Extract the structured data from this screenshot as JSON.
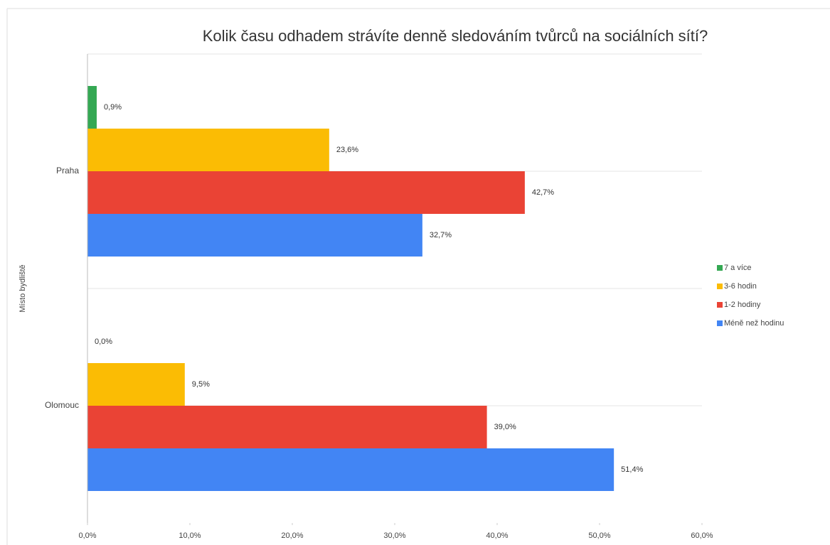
{
  "chart_data": {
    "type": "hbar",
    "title": "Kolik času odhadem strávíte denně sledováním tvůrců na sociálních sítí?",
    "y_label": "Místo bydliště",
    "categories": [
      "Praha",
      "Olomouc"
    ],
    "series": [
      {
        "name": "7 a více",
        "color": "#34a853",
        "values": [
          0.9,
          0.0
        ],
        "value_labels": [
          "0,9%",
          "0,0%"
        ]
      },
      {
        "name": "3-6 hodin",
        "color": "#fbbc04",
        "values": [
          23.6,
          9.5
        ],
        "value_labels": [
          "23,6%",
          "9,5%"
        ]
      },
      {
        "name": "1-2 hodiny",
        "color": "#ea4335",
        "values": [
          42.7,
          39.0
        ],
        "value_labels": [
          "42,7%",
          "39,0%"
        ]
      },
      {
        "name": "Méně než hodinu",
        "color": "#4285f4",
        "values": [
          32.7,
          51.4
        ],
        "value_labels": [
          "32,7%",
          "51,4%"
        ]
      }
    ],
    "xlim": [
      0,
      60
    ],
    "xticks": [
      {
        "value": 0,
        "label": "0,0%"
      },
      {
        "value": 10,
        "label": "10,0%"
      },
      {
        "value": 20,
        "label": "20,0%"
      },
      {
        "value": 30,
        "label": "30,0%"
      },
      {
        "value": 40,
        "label": "40,0%"
      },
      {
        "value": 50,
        "label": "50,0%"
      },
      {
        "value": 60,
        "label": "60,0%"
      }
    ],
    "legend": "right"
  }
}
